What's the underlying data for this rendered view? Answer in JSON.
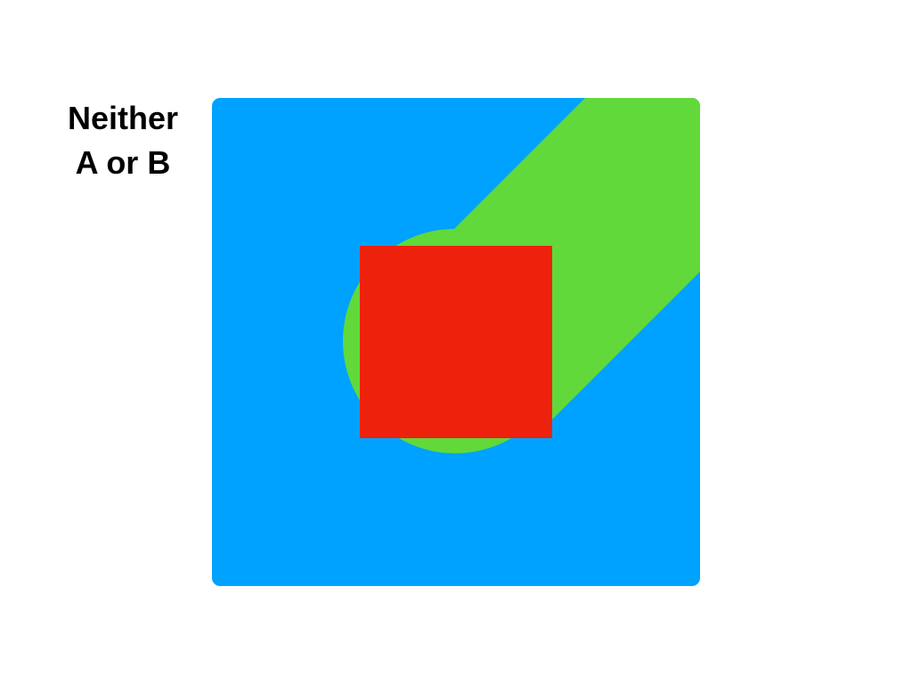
{
  "caption": {
    "line1": "Neither",
    "line2": "A or B"
  },
  "colors": {
    "background_square": "#00A2FF",
    "swept_shape": "#61D93A",
    "front_square": "#EE220C",
    "caption_text": "#000000"
  }
}
